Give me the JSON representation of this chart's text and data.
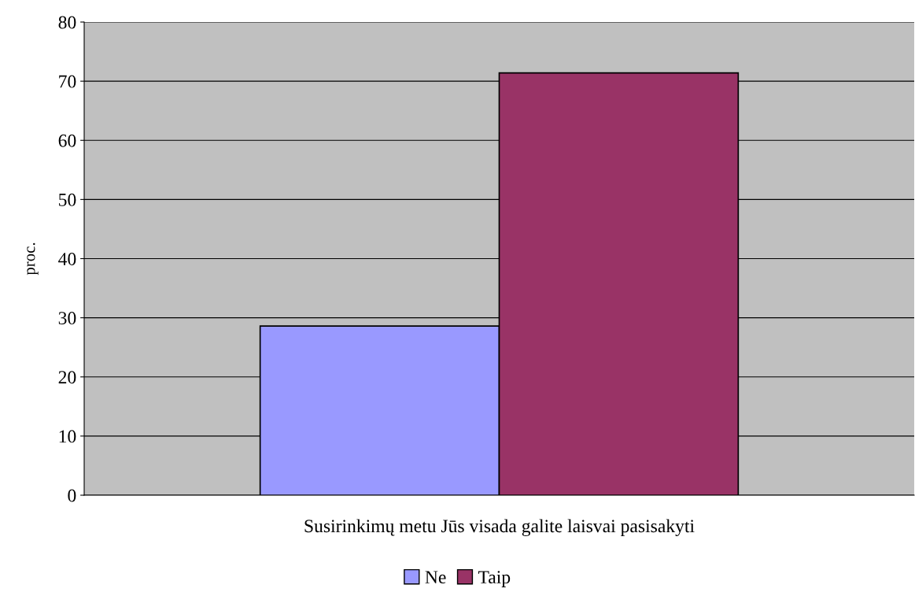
{
  "chart_data": {
    "type": "bar",
    "categories": [
      "Susirinkimų metu Jūs visada galite laisvai pasisakyti"
    ],
    "ylabel": "proc.",
    "series": [
      {
        "name": "Ne",
        "color": "#9999ff",
        "values": [
          28.6
        ]
      },
      {
        "name": "Taip",
        "color": "#993366",
        "values": [
          71.4
        ]
      }
    ],
    "ylim": [
      0,
      80
    ],
    "yticks": [
      0,
      10,
      20,
      30,
      40,
      50,
      60,
      70,
      80
    ],
    "grid": "y",
    "legend": "bottom"
  }
}
